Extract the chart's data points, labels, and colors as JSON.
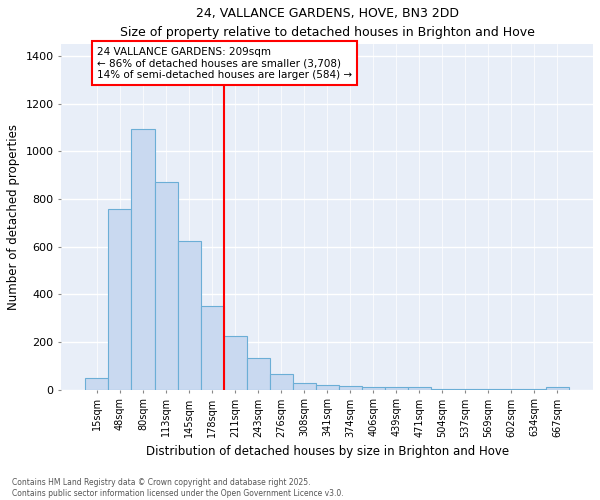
{
  "title": "24, VALLANCE GARDENS, HOVE, BN3 2DD",
  "subtitle": "Size of property relative to detached houses in Brighton and Hove",
  "xlabel": "Distribution of detached houses by size in Brighton and Hove",
  "ylabel": "Number of detached properties",
  "categories": [
    "15sqm",
    "48sqm",
    "80sqm",
    "113sqm",
    "145sqm",
    "178sqm",
    "211sqm",
    "243sqm",
    "276sqm",
    "308sqm",
    "341sqm",
    "374sqm",
    "406sqm",
    "439sqm",
    "471sqm",
    "504sqm",
    "537sqm",
    "569sqm",
    "602sqm",
    "634sqm",
    "667sqm"
  ],
  "bar_heights": [
    50,
    760,
    1095,
    870,
    625,
    350,
    225,
    135,
    65,
    30,
    20,
    15,
    10,
    10,
    10,
    5,
    5,
    5,
    5,
    5,
    10
  ],
  "bar_color": "#c9d9f0",
  "bar_edge_color": "#6baed6",
  "vline_index": 6,
  "vline_color": "red",
  "annotation_text": "24 VALLANCE GARDENS: 209sqm\n← 86% of detached houses are smaller (3,708)\n14% of semi-detached houses are larger (584) →",
  "background_color": "#e8eef8",
  "grid_color": "#ffffff",
  "ylim": [
    0,
    1450
  ],
  "yticks": [
    0,
    200,
    400,
    600,
    800,
    1000,
    1200,
    1400
  ],
  "footer": "Contains HM Land Registry data © Crown copyright and database right 2025.\nContains public sector information licensed under the Open Government Licence v3.0."
}
